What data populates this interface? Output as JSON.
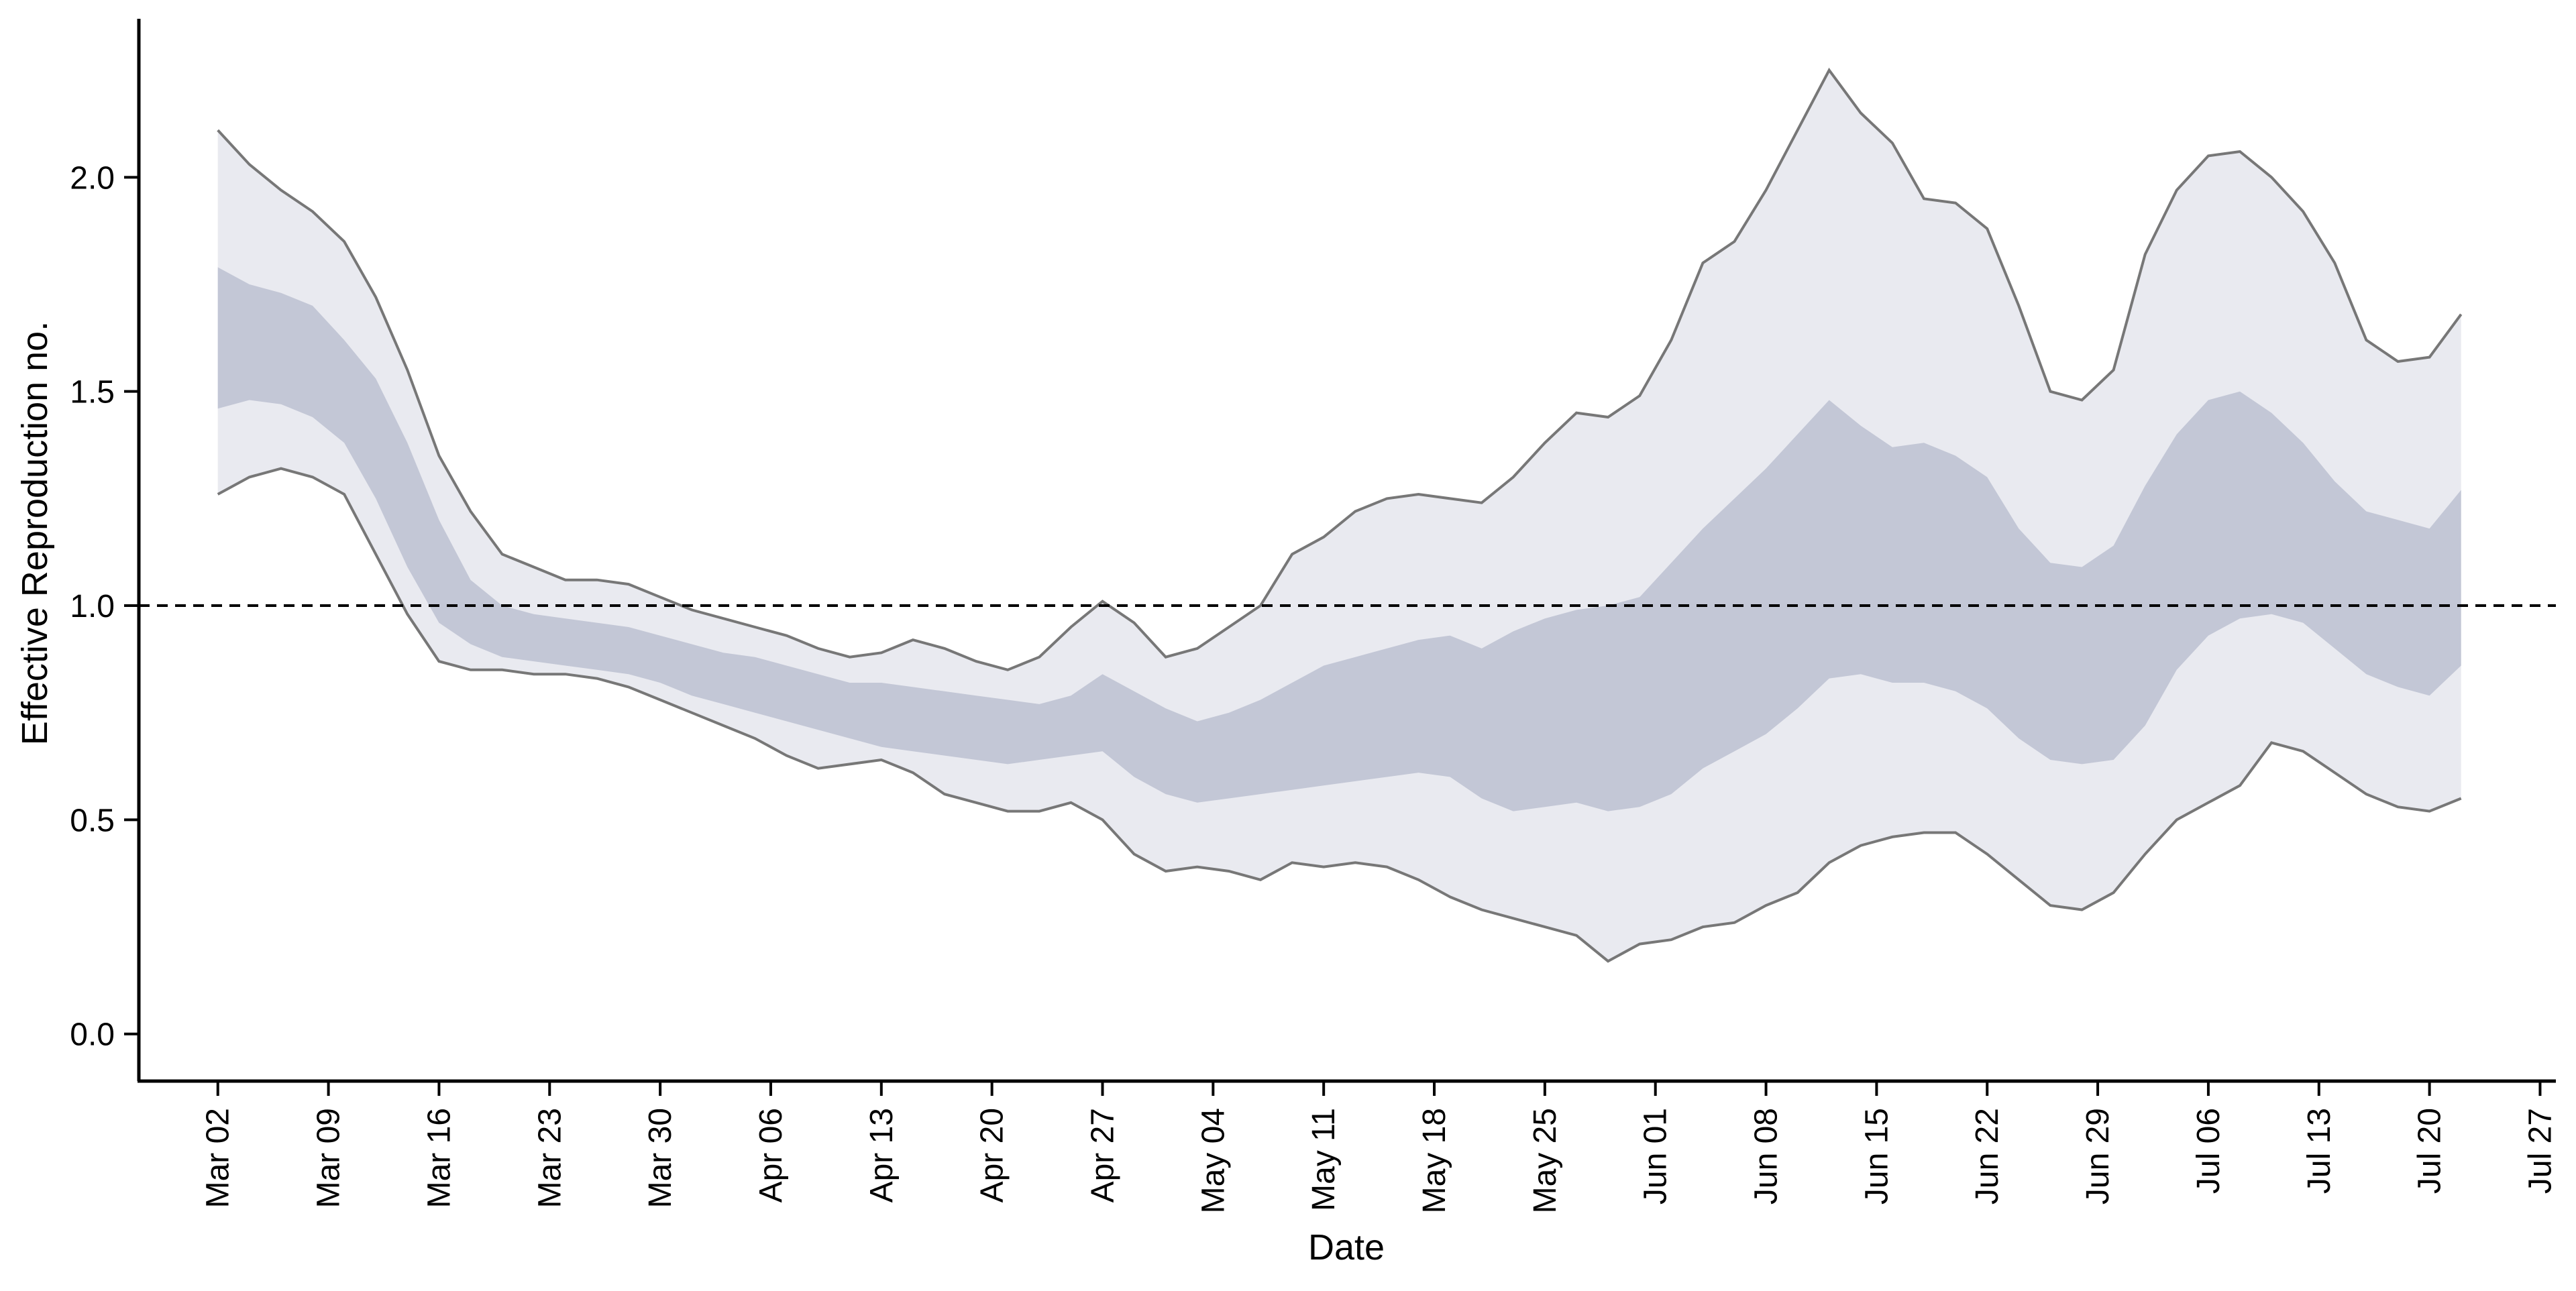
{
  "chart_data": {
    "type": "area",
    "xlabel": "Date",
    "ylabel": "Effective Reproduction no.",
    "xlim": [
      "2020-02-26",
      "2020-07-28"
    ],
    "ylim": [
      -0.11,
      2.37
    ],
    "x_tick_labels": [
      {
        "date": "2020-03-02",
        "label": "Mar 02"
      },
      {
        "date": "2020-03-09",
        "label": "Mar 09"
      },
      {
        "date": "2020-03-16",
        "label": "Mar 16"
      },
      {
        "date": "2020-03-23",
        "label": "Mar 23"
      },
      {
        "date": "2020-03-30",
        "label": "Mar 30"
      },
      {
        "date": "2020-04-06",
        "label": "Apr 06"
      },
      {
        "date": "2020-04-13",
        "label": "Apr 13"
      },
      {
        "date": "2020-04-20",
        "label": "Apr 20"
      },
      {
        "date": "2020-04-27",
        "label": "Apr 27"
      },
      {
        "date": "2020-05-04",
        "label": "May 04"
      },
      {
        "date": "2020-05-11",
        "label": "May 11"
      },
      {
        "date": "2020-05-18",
        "label": "May 18"
      },
      {
        "date": "2020-05-25",
        "label": "May 25"
      },
      {
        "date": "2020-06-01",
        "label": "Jun 01"
      },
      {
        "date": "2020-06-08",
        "label": "Jun 08"
      },
      {
        "date": "2020-06-15",
        "label": "Jun 15"
      },
      {
        "date": "2020-06-22",
        "label": "Jun 22"
      },
      {
        "date": "2020-06-29",
        "label": "Jun 29"
      },
      {
        "date": "2020-07-06",
        "label": "Jul 06"
      },
      {
        "date": "2020-07-13",
        "label": "Jul 13"
      },
      {
        "date": "2020-07-20",
        "label": "Jul 20"
      },
      {
        "date": "2020-07-27",
        "label": "Jul 27"
      }
    ],
    "y_tick_labels": [
      {
        "value": 0.0,
        "label": "0.0"
      },
      {
        "value": 0.5,
        "label": "0.5"
      },
      {
        "value": 1.0,
        "label": "1.0"
      },
      {
        "value": 1.5,
        "label": "1.5"
      },
      {
        "value": 2.0,
        "label": "2.0"
      }
    ],
    "reference_line": {
      "y": 1.0,
      "style": "dashed",
      "color": "#000000"
    },
    "grid": false,
    "legend": "none",
    "colors": {
      "outer_band": "#e9eaf0",
      "inner_band": "#c3c7d6",
      "bound_line": "#777777",
      "axis": "#000000"
    },
    "series": [
      {
        "x": [
          "2020-03-02",
          "2020-03-04",
          "2020-03-06",
          "2020-03-08",
          "2020-03-10",
          "2020-03-12",
          "2020-03-14",
          "2020-03-16",
          "2020-03-18",
          "2020-03-20",
          "2020-03-22",
          "2020-03-24",
          "2020-03-26",
          "2020-03-28",
          "2020-03-30",
          "2020-04-01",
          "2020-04-03",
          "2020-04-05",
          "2020-04-07",
          "2020-04-09",
          "2020-04-11",
          "2020-04-13",
          "2020-04-15",
          "2020-04-17",
          "2020-04-19",
          "2020-04-21",
          "2020-04-23",
          "2020-04-25",
          "2020-04-27",
          "2020-04-29",
          "2020-05-01",
          "2020-05-03",
          "2020-05-05",
          "2020-05-07",
          "2020-05-09",
          "2020-05-11",
          "2020-05-13",
          "2020-05-15",
          "2020-05-17",
          "2020-05-19",
          "2020-05-21",
          "2020-05-23",
          "2020-05-25",
          "2020-05-27",
          "2020-05-29",
          "2020-05-31",
          "2020-06-02",
          "2020-06-04",
          "2020-06-06",
          "2020-06-08",
          "2020-06-10",
          "2020-06-12",
          "2020-06-14",
          "2020-06-16",
          "2020-06-18",
          "2020-06-20",
          "2020-06-22",
          "2020-06-24",
          "2020-06-26",
          "2020-06-28",
          "2020-06-30",
          "2020-07-02",
          "2020-07-04",
          "2020-07-06",
          "2020-07-08",
          "2020-07-10",
          "2020-07-12",
          "2020-07-14",
          "2020-07-16",
          "2020-07-18",
          "2020-07-20",
          "2020-07-22"
        ],
        "outer_upper": [
          2.11,
          2.03,
          1.97,
          1.92,
          1.85,
          1.72,
          1.55,
          1.35,
          1.22,
          1.12,
          1.09,
          1.06,
          1.06,
          1.05,
          1.02,
          0.99,
          0.97,
          0.95,
          0.93,
          0.9,
          0.88,
          0.89,
          0.92,
          0.9,
          0.87,
          0.85,
          0.88,
          0.95,
          1.01,
          0.96,
          0.88,
          0.9,
          0.95,
          1.0,
          1.12,
          1.16,
          1.22,
          1.25,
          1.26,
          1.25,
          1.24,
          1.3,
          1.38,
          1.45,
          1.44,
          1.49,
          1.62,
          1.8,
          1.85,
          1.97,
          2.11,
          2.25,
          2.15,
          2.08,
          1.95,
          1.94,
          1.88,
          1.7,
          1.5,
          1.48,
          1.55,
          1.82,
          1.97,
          2.05,
          2.06,
          2.0,
          1.92,
          1.8,
          1.62,
          1.57,
          1.58,
          1.68
        ],
        "inner_upper": [
          1.79,
          1.75,
          1.73,
          1.7,
          1.62,
          1.53,
          1.38,
          1.2,
          1.06,
          1.0,
          0.98,
          0.97,
          0.96,
          0.95,
          0.93,
          0.91,
          0.89,
          0.88,
          0.86,
          0.84,
          0.82,
          0.82,
          0.81,
          0.8,
          0.79,
          0.78,
          0.77,
          0.79,
          0.84,
          0.8,
          0.76,
          0.73,
          0.75,
          0.78,
          0.82,
          0.86,
          0.88,
          0.9,
          0.92,
          0.93,
          0.9,
          0.94,
          0.97,
          0.99,
          1.0,
          1.02,
          1.1,
          1.18,
          1.25,
          1.32,
          1.4,
          1.48,
          1.42,
          1.37,
          1.38,
          1.35,
          1.3,
          1.18,
          1.1,
          1.09,
          1.14,
          1.28,
          1.4,
          1.48,
          1.5,
          1.45,
          1.38,
          1.29,
          1.22,
          1.2,
          1.18,
          1.27
        ],
        "inner_lower": [
          1.46,
          1.48,
          1.47,
          1.44,
          1.38,
          1.25,
          1.09,
          0.96,
          0.91,
          0.88,
          0.87,
          0.86,
          0.85,
          0.84,
          0.82,
          0.79,
          0.77,
          0.75,
          0.73,
          0.71,
          0.69,
          0.67,
          0.66,
          0.65,
          0.64,
          0.63,
          0.64,
          0.65,
          0.66,
          0.6,
          0.56,
          0.54,
          0.55,
          0.56,
          0.57,
          0.58,
          0.59,
          0.6,
          0.61,
          0.6,
          0.55,
          0.52,
          0.53,
          0.54,
          0.52,
          0.53,
          0.56,
          0.62,
          0.66,
          0.7,
          0.76,
          0.83,
          0.84,
          0.82,
          0.82,
          0.8,
          0.76,
          0.69,
          0.64,
          0.63,
          0.64,
          0.72,
          0.85,
          0.93,
          0.97,
          0.98,
          0.96,
          0.9,
          0.84,
          0.81,
          0.79,
          0.86
        ],
        "outer_lower": [
          1.26,
          1.3,
          1.32,
          1.3,
          1.26,
          1.12,
          0.98,
          0.87,
          0.85,
          0.85,
          0.84,
          0.84,
          0.83,
          0.81,
          0.78,
          0.75,
          0.72,
          0.69,
          0.65,
          0.62,
          0.63,
          0.64,
          0.61,
          0.56,
          0.54,
          0.52,
          0.52,
          0.54,
          0.5,
          0.42,
          0.38,
          0.39,
          0.38,
          0.36,
          0.4,
          0.39,
          0.4,
          0.39,
          0.36,
          0.32,
          0.29,
          0.27,
          0.25,
          0.23,
          0.17,
          0.21,
          0.22,
          0.25,
          0.26,
          0.3,
          0.33,
          0.4,
          0.44,
          0.46,
          0.47,
          0.47,
          0.42,
          0.36,
          0.3,
          0.29,
          0.33,
          0.42,
          0.5,
          0.54,
          0.58,
          0.68,
          0.66,
          0.61,
          0.56,
          0.53,
          0.52,
          0.55
        ]
      }
    ]
  }
}
